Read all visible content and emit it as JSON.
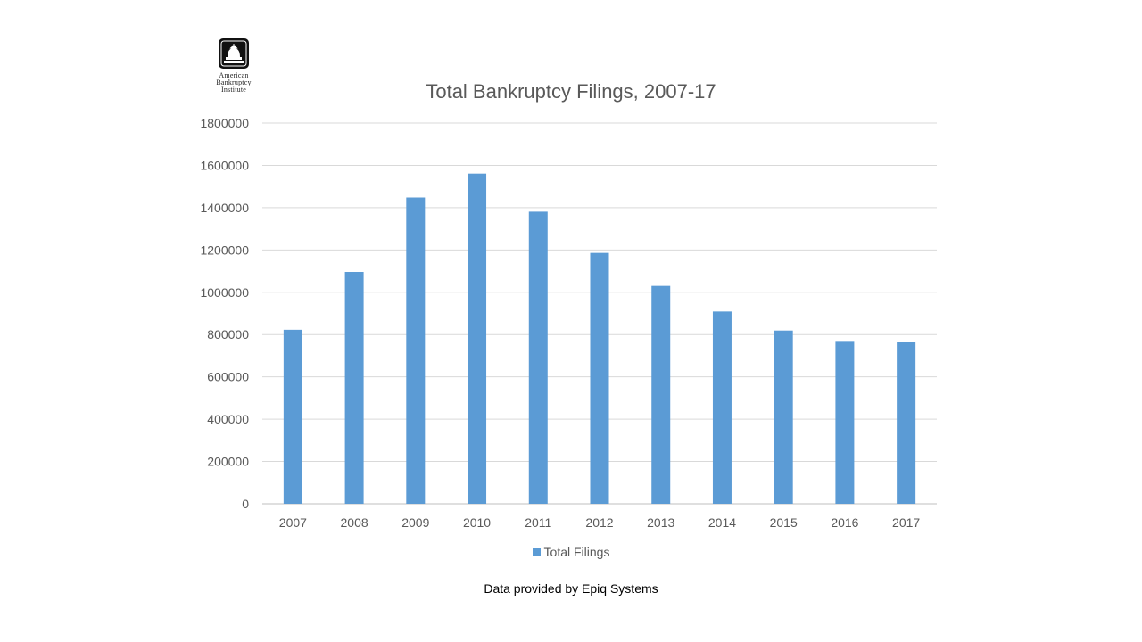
{
  "logo": {
    "icon": "capitol-dome-icon",
    "lines": [
      "American",
      "Bankruptcy",
      "Institute"
    ]
  },
  "chart_data": {
    "type": "bar",
    "title": "Total Bankruptcy Filings, 2007-17",
    "categories": [
      "2007",
      "2008",
      "2009",
      "2010",
      "2011",
      "2012",
      "2013",
      "2014",
      "2015",
      "2016",
      "2017"
    ],
    "series": [
      {
        "name": "Total Filings",
        "values": [
          822590,
          1096000,
          1448000,
          1561000,
          1381000,
          1186000,
          1030000,
          909000,
          819000,
          770000,
          765000
        ],
        "color": "#5b9bd5"
      }
    ],
    "ylim": [
      0,
      1800000
    ],
    "yticks": [
      "0",
      "200000",
      "400000",
      "600000",
      "800000",
      "1000000",
      "1200000",
      "1400000",
      "1600000",
      "1800000"
    ],
    "grid": true,
    "legend_position": "bottom"
  },
  "source_note": "Data provided by Epiq Systems"
}
